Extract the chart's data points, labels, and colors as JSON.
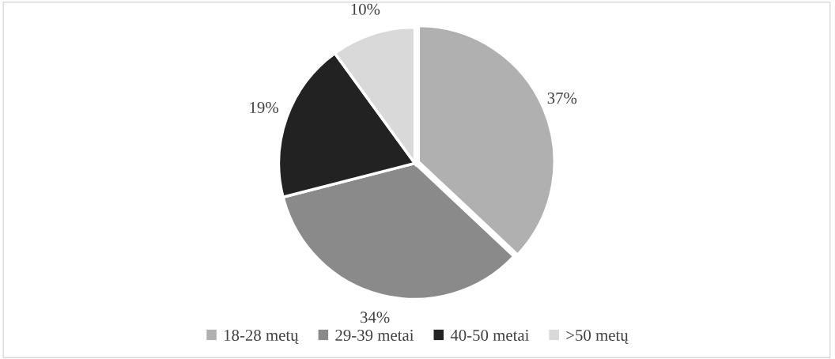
{
  "chart_data": {
    "type": "pie",
    "categories": [
      "18-28 metų",
      "29-39 metai",
      "40-50 metai",
      ">50 metų"
    ],
    "values": [
      37,
      34,
      19,
      10
    ],
    "colors": [
      "#b0b0b0",
      "#8a8a8a",
      "#222222",
      "#d9d9d9"
    ],
    "value_labels": [
      "37%",
      "34%",
      "19%",
      "10%"
    ],
    "legend": "bottom"
  }
}
